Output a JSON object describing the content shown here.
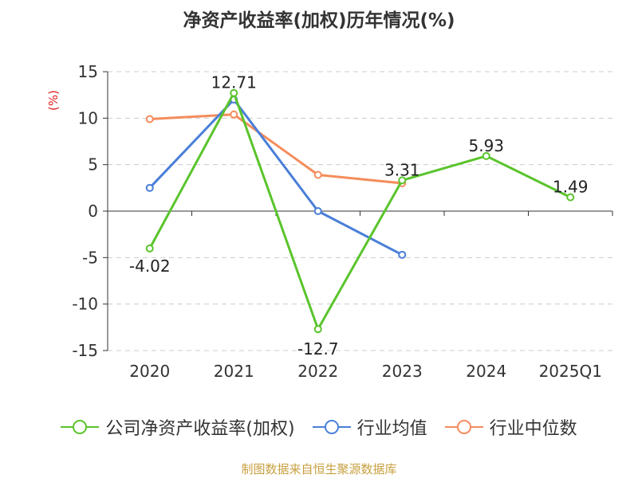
{
  "chart_data": {
    "type": "line",
    "title": "净资产收益率(加权)历年情况(%)",
    "ylabel": "(%)",
    "categories": [
      "2020",
      "2021",
      "2022",
      "2023",
      "2024",
      "2025Q1"
    ],
    "ylim": [
      -15,
      15
    ],
    "yticks": [
      15,
      10,
      5,
      0,
      -5,
      -10,
      -15
    ],
    "series": [
      {
        "name": "公司净资产收益率(加权)",
        "color": "#5ac42c",
        "values": [
          -4.02,
          12.71,
          -12.7,
          3.31,
          5.93,
          1.49
        ],
        "labels": [
          "-4.02",
          "12.71",
          "-12.7",
          "3.31",
          "5.93",
          "1.49"
        ]
      },
      {
        "name": "行业均值",
        "color": "#4a7fd8",
        "values": [
          2.5,
          12.0,
          0.0,
          -4.7,
          null,
          null
        ]
      },
      {
        "name": "行业中位数",
        "color": "#f48c5c",
        "values": [
          9.9,
          10.4,
          3.9,
          3.0,
          null,
          null
        ]
      }
    ]
  },
  "source": "制图数据来自恒生聚源数据库"
}
